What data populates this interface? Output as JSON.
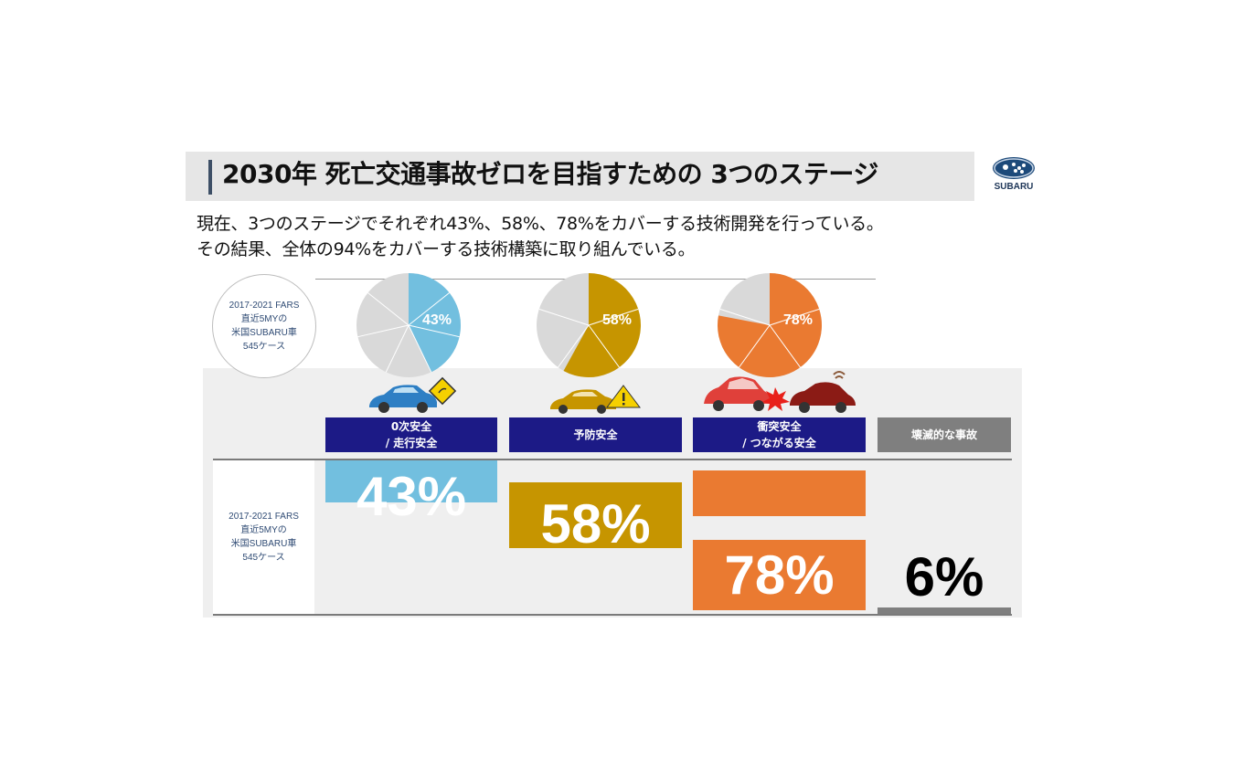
{
  "header": {
    "title": "2030年 死亡交通事故ゼロを目指すための 3つのステージ",
    "logo_text": "SUBARU"
  },
  "subtitle": {
    "line1": "現在、3つのステージでそれぞれ43%、58%、78%をカバーする技術開発を行っている。",
    "line2": "その結果、全体の94%をカバーする技術構築に取り組んでいる。"
  },
  "source_label": {
    "line1": "2017-2021 FARS",
    "line2": "直近5MYの",
    "line3": "米国SUBARU車",
    "line4": "545ケース"
  },
  "colors": {
    "stage1": "#72bfdf",
    "stage2": "#c69500",
    "stage3": "#ea7a31",
    "stage4": "#7f7f7f",
    "header_box": "#1c1a86",
    "pie_rest": "#d9d9d9"
  },
  "icons": [
    "car-with-skid-sign-icon",
    "car-with-warning-sign-icon",
    "car-collision-icon"
  ],
  "chart_data": {
    "type": "bar",
    "categories": [
      "0次安全 / 走行安全",
      "予防安全",
      "衝突安全 / つながる安全",
      "壊滅的な事故"
    ],
    "values": [
      43,
      58,
      78,
      6
    ],
    "unit": "%",
    "stages": [
      {
        "line1": "0次安全",
        "line2": "/ 走行安全",
        "value_label": "43%"
      },
      {
        "line1": "予防安全",
        "line2": "",
        "value_label": "58%"
      },
      {
        "line1": "衝突安全",
        "line2": "/ つながる安全",
        "value_label": "78%"
      },
      {
        "line1": "壊滅的な事故",
        "line2": "",
        "value_label": "6%"
      }
    ],
    "pies": [
      {
        "value": 43,
        "label": "43%"
      },
      {
        "value": 58,
        "label": "58%"
      },
      {
        "value": 78,
        "label": "78%"
      }
    ]
  }
}
